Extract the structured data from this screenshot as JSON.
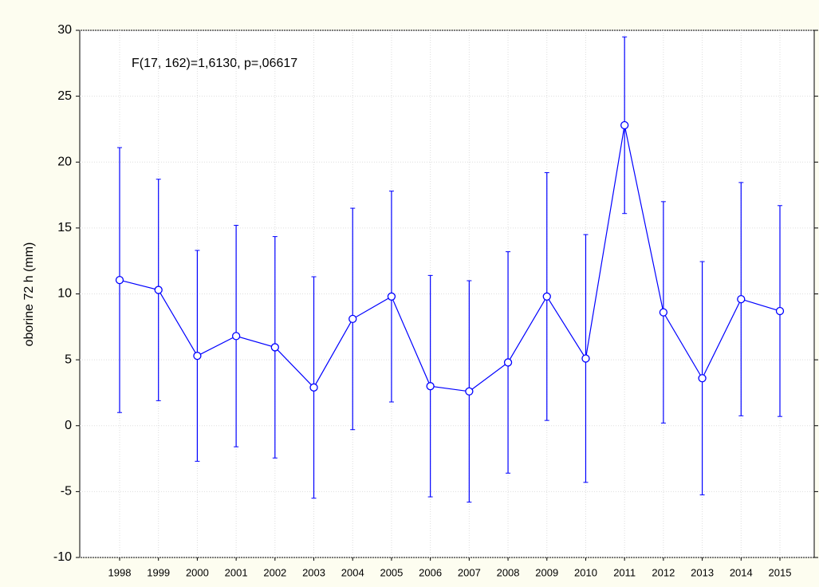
{
  "chart_data": {
    "type": "line",
    "annotation": "F(17, 162)=1,6130, p=,06617",
    "y_label": "oborine 72 h (mm)",
    "categories": [
      "1998",
      "1999",
      "2000",
      "2001",
      "2002",
      "2003",
      "2004",
      "2005",
      "2006",
      "2007",
      "2008",
      "2009",
      "2010",
      "2011",
      "2012",
      "2013",
      "2014",
      "2015"
    ],
    "values": [
      11.05,
      10.3,
      5.3,
      6.8,
      5.95,
      2.9,
      8.1,
      9.8,
      3.0,
      2.6,
      4.8,
      9.8,
      5.1,
      22.8,
      8.6,
      3.6,
      9.6,
      8.7
    ],
    "errors": [
      10.05,
      8.4,
      8.0,
      8.4,
      8.4,
      8.4,
      8.4,
      8.0,
      8.4,
      8.4,
      8.4,
      9.4,
      9.4,
      6.7,
      8.4,
      8.85,
      8.85,
      8.0
    ],
    "color": "#0000ff",
    "ylim": [
      -10,
      30
    ],
    "yticks": [
      -10,
      -5,
      0,
      5,
      10,
      15,
      20,
      25,
      30
    ],
    "grid": true
  }
}
